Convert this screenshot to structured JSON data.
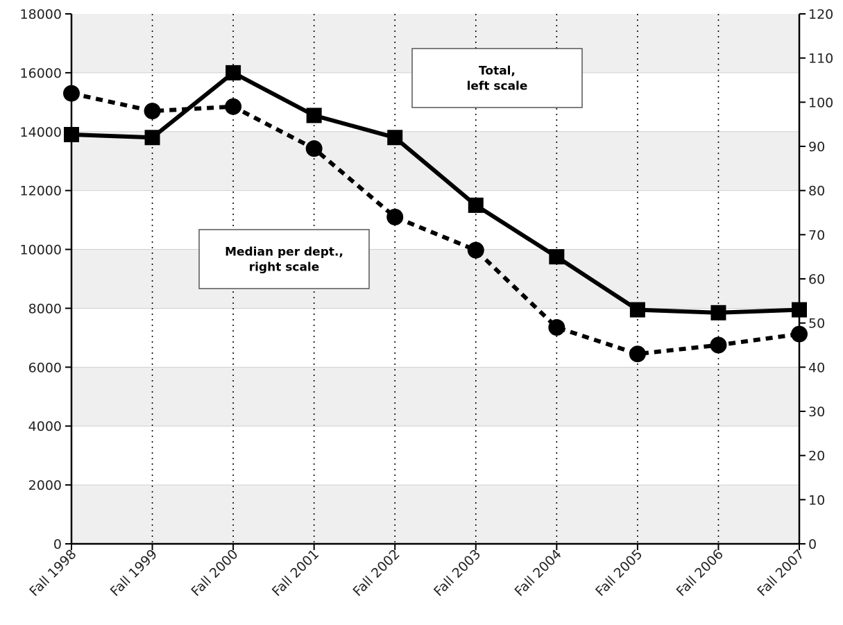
{
  "chart_data": {
    "type": "line",
    "categories": [
      "Fall 1998",
      "Fall 1999",
      "Fall 2000",
      "Fall 2001",
      "Fall 2002",
      "Fall 2003",
      "Fall 2004",
      "Fall 2005",
      "Fall 2006",
      "Fall 2007"
    ],
    "series": [
      {
        "axis": "left",
        "line_style": "solid",
        "marker": "square",
        "values": [
          13900,
          13800,
          16000,
          14550,
          13800,
          11500,
          9750,
          7950,
          7850,
          7950
        ]
      },
      {
        "axis": "right",
        "line_style": "dashed",
        "marker": "circle",
        "values": [
          102,
          98,
          99,
          89.5,
          74,
          66.5,
          49,
          43,
          45,
          47.5
        ]
      }
    ],
    "y_left": {
      "ylim": [
        0,
        18000
      ],
      "ticks": [
        0,
        2000,
        4000,
        6000,
        8000,
        10000,
        12000,
        14000,
        16000,
        18000
      ]
    },
    "y_right": {
      "ylim": [
        0,
        120
      ],
      "ticks": [
        0,
        10,
        20,
        30,
        40,
        50,
        60,
        70,
        80,
        90,
        100,
        110,
        120
      ]
    },
    "annotations": [
      {
        "series_index": 0,
        "lines": [
          "Total,",
          "left scale"
        ]
      },
      {
        "series_index": 1,
        "lines": [
          "Median per dept.,",
          "right scale"
        ]
      }
    ],
    "grid": {
      "horizontal_bands": true,
      "vertical_dotted": true
    },
    "colors": {
      "band": "#efefef",
      "band_alt": "#ffffff",
      "line": "#000000",
      "axis": "#000000",
      "gridline": "#d0d0d0"
    }
  }
}
